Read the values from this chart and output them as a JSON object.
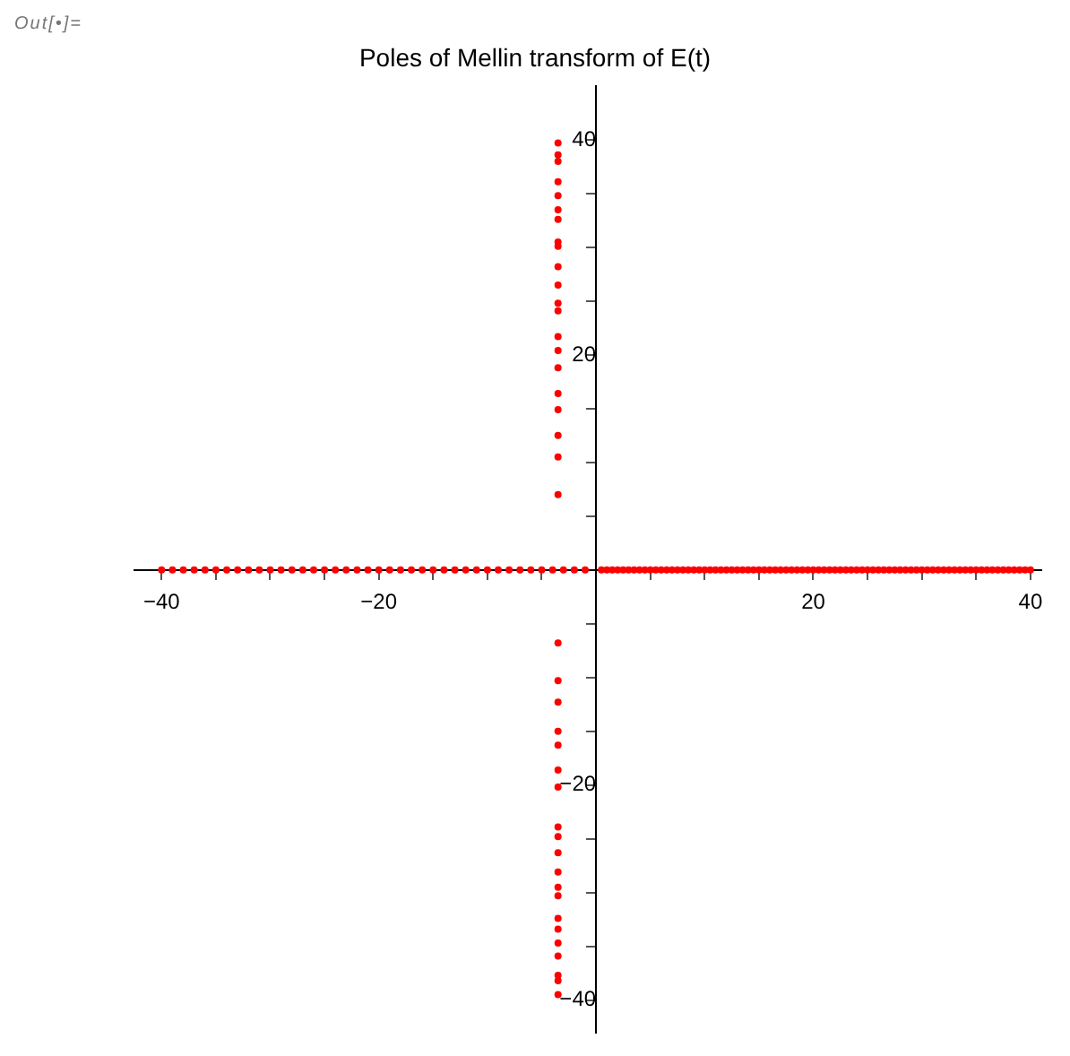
{
  "chart_data": {
    "type": "scatter",
    "title": "Poles of Mellin transform of E(t)",
    "annotations": [
      "Out[•]="
    ],
    "series": [
      {
        "color": "#ff0000",
        "x": [
          -3.5,
          -3.5,
          -3.5,
          -3.5,
          -3.5,
          -3.5,
          -3.5,
          -3.5,
          -3.5,
          -3.5,
          -3.5,
          -3.5,
          -3.5,
          -3.5,
          -3.5,
          -3.5,
          -3.5,
          -3.5,
          -3.5,
          -3.5,
          -3.5,
          -3.5,
          -3.5,
          -3.5,
          -3.5,
          -3.5,
          -3.5,
          -3.5,
          -3.5,
          -3.5,
          -3.5,
          -3.5,
          -3.5,
          -3.5,
          -3.5,
          -3.5,
          -3.5,
          -3.5,
          -3.5,
          -3.5,
          -3.5
        ],
        "values": [
          39.7,
          38.6,
          38.0,
          36.1,
          34.8,
          33.5,
          32.6,
          30.5,
          30.1,
          28.2,
          26.5,
          24.8,
          24.1,
          21.7,
          20.4,
          18.8,
          16.4,
          14.9,
          12.5,
          10.5,
          7.0,
          -6.8,
          -10.3,
          -12.3,
          -15.0,
          -16.3,
          -18.6,
          -20.2,
          -23.9,
          -24.8,
          -26.3,
          -28.1,
          -29.5,
          -30.3,
          -32.4,
          -33.4,
          -34.7,
          -35.9,
          -37.7,
          -38.2,
          -39.5
        ]
      },
      {
        "color": "#ff0000",
        "x": [
          -40,
          -39,
          -38,
          -37,
          -36,
          -35,
          -34,
          -33,
          -32,
          -31,
          -30,
          -29,
          -28,
          -27,
          -26,
          -25,
          -24,
          -23,
          -22,
          -21,
          -20,
          -19,
          -18,
          -17,
          -16,
          -15,
          -14,
          -13,
          -12,
          -11,
          -10,
          -9,
          -8,
          -7,
          -6,
          -5,
          -4,
          -3,
          -2,
          -1,
          0.5,
          1,
          1.5,
          2,
          2.5,
          3,
          3.5,
          4,
          4.5,
          5,
          5.5,
          6,
          6.5,
          7,
          7.5,
          8,
          8.5,
          9,
          9.5,
          10,
          10.5,
          11,
          11.5,
          12,
          12.5,
          13,
          13.5,
          14,
          14.5,
          15,
          15.5,
          16,
          16.5,
          17,
          17.5,
          18,
          18.5,
          19,
          19.5,
          20,
          20.5,
          21,
          21.5,
          22,
          22.5,
          23,
          23.5,
          24,
          24.5,
          25,
          25.5,
          26,
          26.5,
          27,
          27.5,
          28,
          28.5,
          29,
          29.5,
          30,
          30.5,
          31,
          31.5,
          32,
          32.5,
          33,
          33.5,
          34,
          34.5,
          35,
          35.5,
          36,
          36.5,
          37,
          37.5,
          38,
          38.5,
          39,
          39.5,
          40
        ],
        "values": [
          0,
          0,
          0,
          0,
          0,
          0,
          0,
          0,
          0,
          0,
          0,
          0,
          0,
          0,
          0,
          0,
          0,
          0,
          0,
          0,
          0,
          0,
          0,
          0,
          0,
          0,
          0,
          0,
          0,
          0,
          0,
          0,
          0,
          0,
          0,
          0,
          0,
          0,
          0,
          0,
          0,
          0,
          0,
          0,
          0,
          0,
          0,
          0,
          0,
          0,
          0,
          0,
          0,
          0,
          0,
          0,
          0,
          0,
          0,
          0,
          0,
          0,
          0,
          0,
          0,
          0,
          0,
          0,
          0,
          0,
          0,
          0,
          0,
          0,
          0,
          0,
          0,
          0,
          0,
          0,
          0,
          0,
          0,
          0,
          0,
          0,
          0,
          0,
          0,
          0,
          0,
          0,
          0,
          0,
          0,
          0,
          0,
          0,
          0,
          0,
          0,
          0,
          0,
          0,
          0,
          0,
          0,
          0,
          0,
          0,
          0,
          0,
          0,
          0,
          0,
          0,
          0,
          0,
          0,
          0
        ]
      }
    ],
    "xlim": [
      -42.5,
      41
    ],
    "ylim": [
      -43,
      45
    ],
    "xticks": [
      {
        "value": -40,
        "label": "−40"
      },
      {
        "value": -35,
        "label": null
      },
      {
        "value": -30,
        "label": null
      },
      {
        "value": -25,
        "label": null
      },
      {
        "value": -20,
        "label": "−20"
      },
      {
        "value": -15,
        "label": null
      },
      {
        "value": -10,
        "label": null
      },
      {
        "value": -5,
        "label": null
      },
      {
        "value": 5,
        "label": null
      },
      {
        "value": 10,
        "label": null
      },
      {
        "value": 15,
        "label": null
      },
      {
        "value": 20,
        "label": "20"
      },
      {
        "value": 25,
        "label": null
      },
      {
        "value": 30,
        "label": null
      },
      {
        "value": 35,
        "label": null
      },
      {
        "value": 40,
        "label": "40"
      }
    ],
    "yticks": [
      {
        "value": -40,
        "label": "−40"
      },
      {
        "value": -35,
        "label": null
      },
      {
        "value": -30,
        "label": null
      },
      {
        "value": -25,
        "label": null
      },
      {
        "value": -20,
        "label": "−20"
      },
      {
        "value": -15,
        "label": null
      },
      {
        "value": -10,
        "label": null
      },
      {
        "value": -5,
        "label": null
      },
      {
        "value": 5,
        "label": null
      },
      {
        "value": 10,
        "label": null
      },
      {
        "value": 15,
        "label": null
      },
      {
        "value": 20,
        "label": "20"
      },
      {
        "value": 25,
        "label": null
      },
      {
        "value": 30,
        "label": null
      },
      {
        "value": 35,
        "label": null
      },
      {
        "value": 40,
        "label": "40"
      }
    ],
    "grid": false,
    "legend": false,
    "marker": "circle"
  }
}
